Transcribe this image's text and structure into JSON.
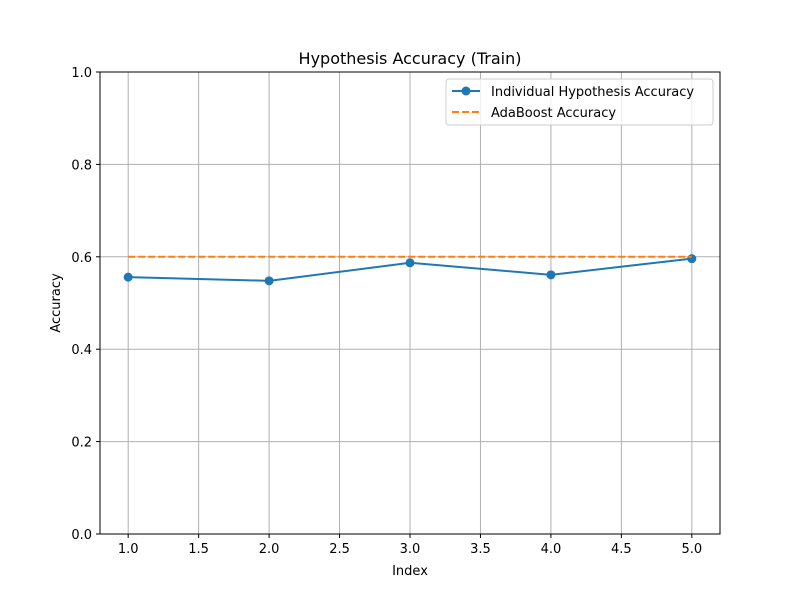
{
  "chart_data": {
    "type": "line",
    "title": "Hypothesis Accuracy (Train)",
    "xlabel": "Index",
    "ylabel": "Accuracy",
    "xlim": [
      0.8,
      5.2
    ],
    "ylim": [
      0,
      1
    ],
    "xticks": [
      1.0,
      1.5,
      2.0,
      2.5,
      3.0,
      3.5,
      4.0,
      4.5,
      5.0
    ],
    "xtick_labels": [
      "1.0",
      "1.5",
      "2.0",
      "2.5",
      "3.0",
      "3.5",
      "4.0",
      "4.5",
      "5.0"
    ],
    "yticks": [
      0.0,
      0.2,
      0.4,
      0.6,
      0.8,
      1.0
    ],
    "ytick_labels": [
      "0.0",
      "0.2",
      "0.4",
      "0.6",
      "0.8",
      "1.0"
    ],
    "grid": true,
    "legend_position": "top-right",
    "series": [
      {
        "name": "Individual Hypothesis Accuracy",
        "x": [
          1,
          2,
          3,
          4,
          5
        ],
        "values": [
          0.556,
          0.548,
          0.587,
          0.561,
          0.596
        ],
        "color": "#1f77b4",
        "line_style": "solid",
        "marker": "circle"
      },
      {
        "name": "AdaBoost Accuracy",
        "x": [
          1,
          5
        ],
        "values": [
          0.6,
          0.6
        ],
        "color": "#ff7f0e",
        "line_style": "dashed",
        "marker": "none"
      }
    ]
  }
}
